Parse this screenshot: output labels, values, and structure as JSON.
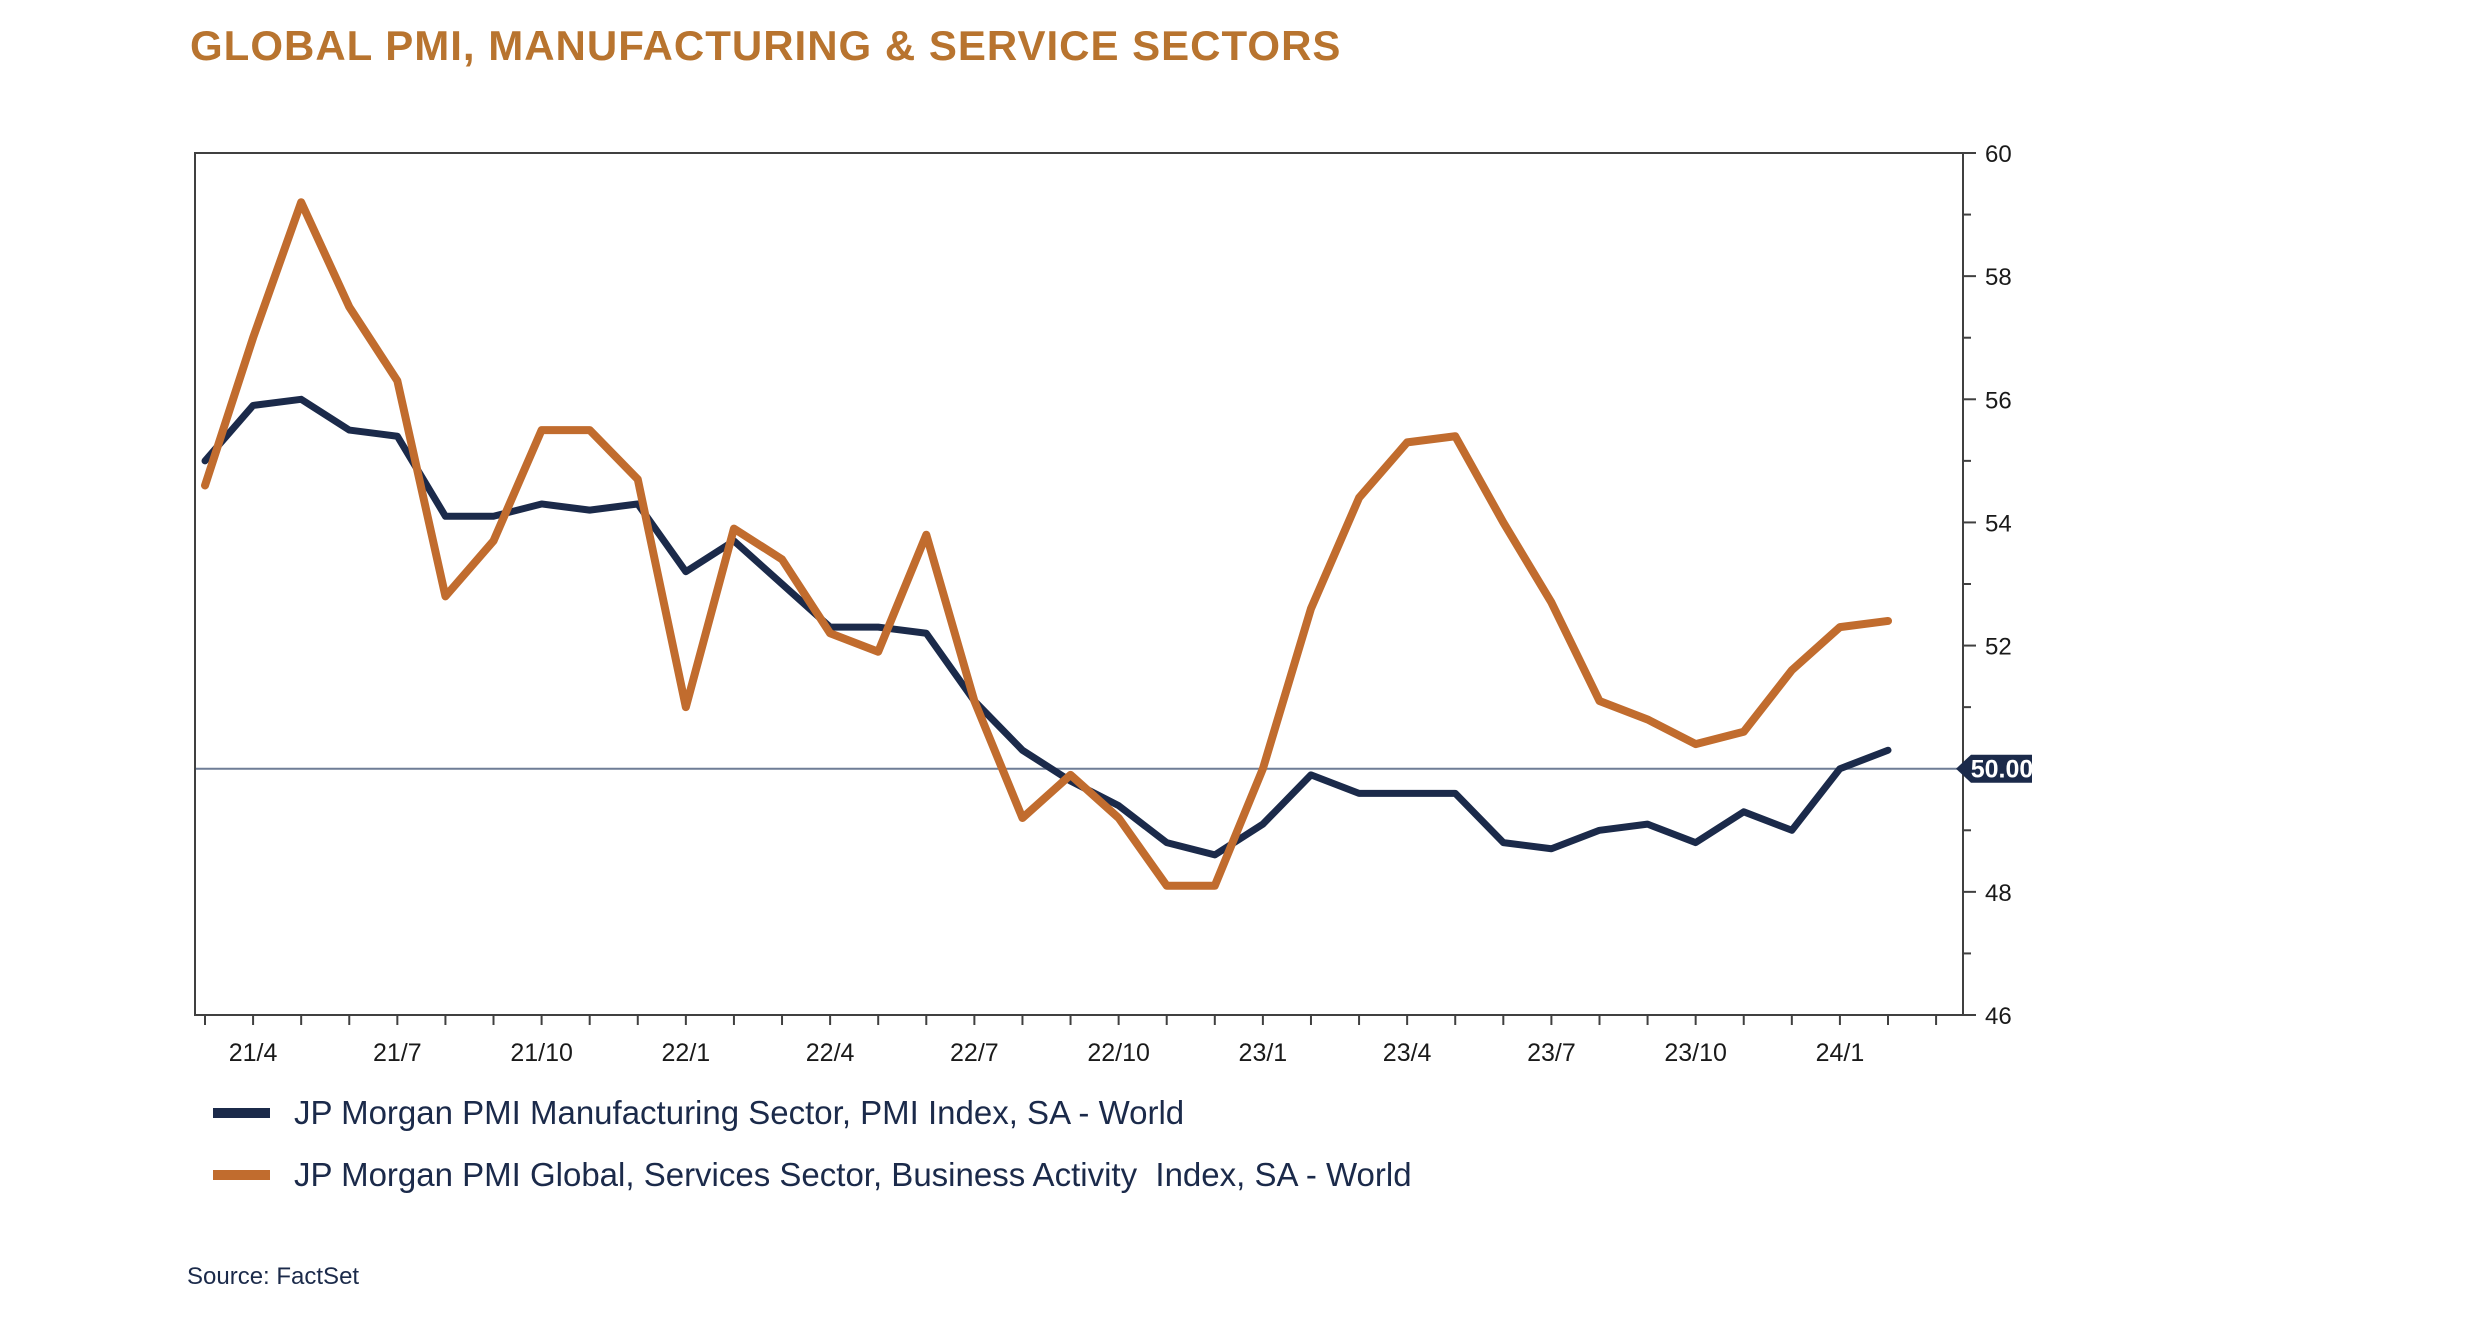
{
  "title": "GLOBAL PMI, MANUFACTURING & SERVICE SECTORS",
  "source": "Source: FactSet",
  "colors": {
    "title": "#B8742F",
    "manufacturing": "#1B2A4A",
    "services": "#C16C2E",
    "text": "#1B2A4A",
    "axis": "#404040",
    "tick_label": "#1A1A1A",
    "ref_line": "#6F7D96",
    "badge_bg": "#1B2A4A",
    "badge_text": "#FFFFFF"
  },
  "legend": [
    {
      "label": "JP Morgan PMI Manufacturing Sector, PMI Index, SA - World",
      "color_key": "manufacturing"
    },
    {
      "label": "JP Morgan PMI Global, Services Sector, Business Activity  Index, SA - World",
      "color_key": "services"
    }
  ],
  "chart_data": {
    "type": "line",
    "x": [
      "21/3",
      "21/4",
      "21/5",
      "21/6",
      "21/7",
      "21/8",
      "21/9",
      "21/10",
      "21/11",
      "21/12",
      "22/1",
      "22/2",
      "22/3",
      "22/4",
      "22/5",
      "22/6",
      "22/7",
      "22/8",
      "22/9",
      "22/10",
      "22/11",
      "22/12",
      "23/1",
      "23/2",
      "23/3",
      "23/4",
      "23/5",
      "23/6",
      "23/7",
      "23/8",
      "23/9",
      "23/10",
      "23/11",
      "23/12",
      "24/1",
      "24/2"
    ],
    "x_tick_labels": [
      "21/4",
      "21/7",
      "21/10",
      "22/1",
      "22/4",
      "22/7",
      "22/10",
      "23/1",
      "23/4",
      "23/7",
      "23/10",
      "24/1"
    ],
    "series": [
      {
        "name": "JP Morgan PMI Manufacturing Sector, PMI Index, SA - World",
        "color": "#1B2A4A",
        "values": [
          55.0,
          55.9,
          56.0,
          55.5,
          55.4,
          54.1,
          54.1,
          54.3,
          54.2,
          54.3,
          53.2,
          53.7,
          53.0,
          52.3,
          52.3,
          52.2,
          51.1,
          50.3,
          49.8,
          49.4,
          48.8,
          48.6,
          49.1,
          49.9,
          49.6,
          49.6,
          49.6,
          48.8,
          48.7,
          49.0,
          49.1,
          48.8,
          49.3,
          49.0,
          50.0,
          50.3
        ]
      },
      {
        "name": "JP Morgan PMI Global, Services Sector, Business Activity  Index, SA - World",
        "color": "#C16C2E",
        "values": [
          54.6,
          57.0,
          59.2,
          57.5,
          56.3,
          52.8,
          53.7,
          55.5,
          55.5,
          54.7,
          51.0,
          53.9,
          53.4,
          52.2,
          51.9,
          53.8,
          51.1,
          49.2,
          49.9,
          49.2,
          48.1,
          48.1,
          50.0,
          52.6,
          54.4,
          55.3,
          55.4,
          54.0,
          52.7,
          51.1,
          50.8,
          50.4,
          50.6,
          51.6,
          52.3,
          52.4
        ]
      }
    ],
    "ylim": [
      46,
      60
    ],
    "y_major_ticks": [
      46,
      48,
      50,
      52,
      54,
      56,
      58,
      60
    ],
    "y_minor_step": 1,
    "ref_line": {
      "value": 50,
      "label": "50.00"
    },
    "grid": "ref-line-only",
    "legend_position": "bottom",
    "y_axis_side": "right"
  }
}
